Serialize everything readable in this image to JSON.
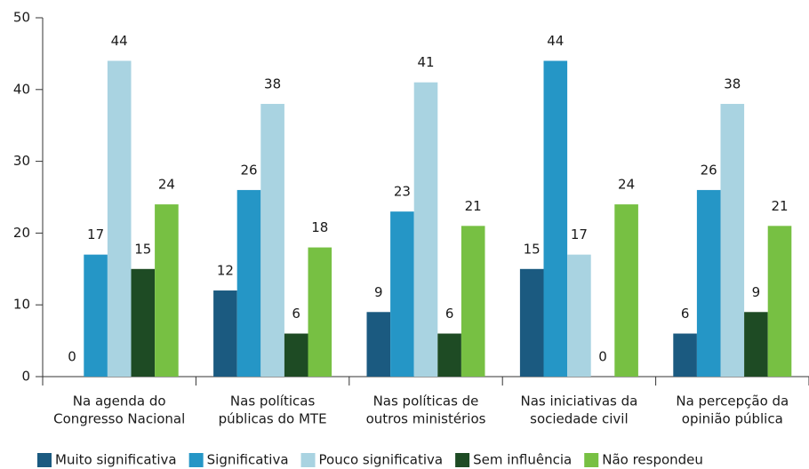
{
  "chart_data": {
    "type": "bar",
    "categories": [
      [
        "Na agenda do",
        "Congresso Nacional"
      ],
      [
        "Nas políticas",
        "públicas do MTE"
      ],
      [
        "Nas políticas  de",
        "outros ministérios"
      ],
      [
        "Nas iniciativas da",
        "sociedade civil"
      ],
      [
        "Na percepção da",
        "opinião pública"
      ]
    ],
    "series": [
      {
        "name": "Muito significativa",
        "color": "#1b5a80",
        "values": [
          0,
          12,
          9,
          15,
          6
        ]
      },
      {
        "name": "Significativa",
        "color": "#2596c6",
        "values": [
          17,
          26,
          23,
          44,
          26
        ]
      },
      {
        "name": "Pouco significativa",
        "color": "#a9d3e1",
        "values": [
          44,
          38,
          41,
          17,
          38
        ]
      },
      {
        "name": "Sem influência",
        "color": "#1e4b24",
        "values": [
          15,
          6,
          6,
          0,
          9
        ]
      },
      {
        "name": "Não respondeu",
        "color": "#77c043",
        "values": [
          24,
          18,
          21,
          24,
          21
        ]
      }
    ],
    "ylim": [
      0,
      50
    ],
    "yticks": [
      0,
      10,
      20,
      30,
      40,
      50
    ],
    "grid": false,
    "legend": "bottom"
  }
}
